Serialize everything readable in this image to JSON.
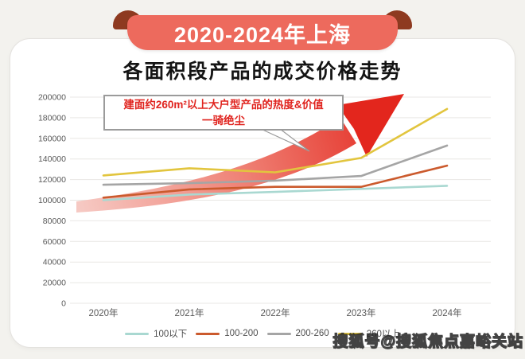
{
  "banner": {
    "label": "2020-2024年上海"
  },
  "title": "各面积段产品的成交价格走势",
  "annotation": {
    "line1": "建面约260m²以上大户型产品的热度&价值",
    "line2": "一骑绝尘"
  },
  "watermark": "搜狐号@搜狐焦点嘉峪关站",
  "colors": {
    "banner": "#ed6a5d",
    "banner_fold": "#8e3a20",
    "annotation_text": "#e0241f",
    "arrow_start": "#f6c9c3",
    "arrow_end": "#e3261d",
    "grid": "#e9e7e4",
    "tick_text": "#595959"
  },
  "chart_data": {
    "type": "line",
    "categories": [
      "2020年",
      "2021年",
      "2022年",
      "2023年",
      "2024年"
    ],
    "series": [
      {
        "name": "100以下",
        "color": "#a9d8d1",
        "values": [
          100000,
          105500,
          108000,
          111000,
          114000
        ]
      },
      {
        "name": "100-200",
        "color": "#cb5a2d",
        "values": [
          102500,
          110500,
          113000,
          113000,
          133500
        ]
      },
      {
        "name": "200-260",
        "color": "#a5a5a5",
        "values": [
          115000,
          116500,
          119000,
          123500,
          153000
        ]
      },
      {
        "name": "260以上",
        "color": "#e2c53e",
        "values": [
          124000,
          131000,
          127000,
          141000,
          188500
        ]
      }
    ],
    "ylim": [
      0,
      200000
    ],
    "ytick_step": 20000,
    "grid": true,
    "legend_position": "bottom",
    "title": "各面积段产品的成交价格走势",
    "xlabel": "",
    "ylabel": ""
  }
}
